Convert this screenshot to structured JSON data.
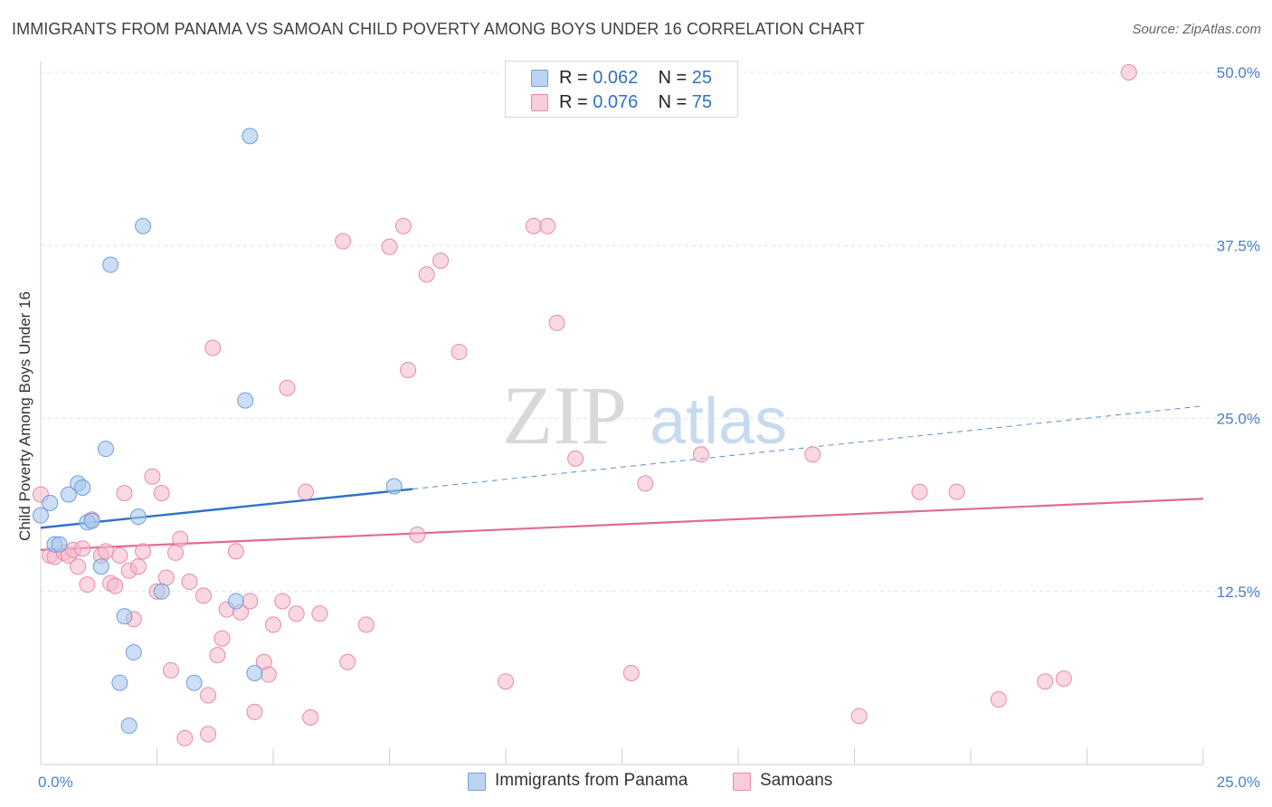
{
  "header": {
    "title": "IMMIGRANTS FROM PANAMA VS SAMOAN CHILD POVERTY AMONG BOYS UNDER 16 CORRELATION CHART",
    "source": "Source: ZipAtlas.com"
  },
  "watermark": {
    "zip": "ZIP",
    "atlas": "atlas"
  },
  "legend": {
    "rows": [
      {
        "r_label": "R =",
        "r_value": "0.062",
        "n_label": "N =",
        "n_value": "25",
        "color": "#a9c8ee"
      },
      {
        "r_label": "R =",
        "r_value": "0.076",
        "n_label": "N =",
        "n_value": "75",
        "color": "#f5b8cb"
      }
    ]
  },
  "bottom_legend": {
    "series1": "Immigrants from Panama",
    "series2": "Samoans"
  },
  "chart_data": {
    "type": "scatter",
    "title": "IMMIGRANTS FROM PANAMA VS SAMOAN CHILD POVERTY AMONG BOYS UNDER 16 CORRELATION CHART",
    "xlabel": "",
    "ylabel": "Child Poverty Among Boys Under 16",
    "xlim": [
      0,
      25
    ],
    "ylim": [
      0,
      50
    ],
    "x_tick_labels": [
      "0.0%",
      "25.0%"
    ],
    "y_ticks": [
      12.5,
      25,
      37.5,
      50
    ],
    "y_tick_labels": [
      "12.5%",
      "25.0%",
      "37.5%",
      "50.0%"
    ],
    "colors": {
      "panama_fill": "#a9c8ee",
      "panama_edge": "#6f9fd9",
      "panama_line": "#2f72c8",
      "samoan_fill": "#f5b8cb",
      "samoan_edge": "#e68aa8",
      "samoan_line": "#e06b94",
      "grid": "#e4e4e4",
      "tick_label": "#4a7fc8"
    },
    "series": [
      {
        "name": "Immigrants from Panama",
        "trend": {
          "x0": 0,
          "y0": 17.1,
          "x1": 8.0,
          "y1": 19.9,
          "x_dash_end": 25,
          "y_dash_end": 25.9
        },
        "points": [
          [
            0.0,
            18.0
          ],
          [
            0.2,
            18.9
          ],
          [
            0.3,
            15.9
          ],
          [
            0.4,
            15.9
          ],
          [
            0.6,
            19.5
          ],
          [
            0.8,
            20.3
          ],
          [
            0.9,
            20.0
          ],
          [
            1.0,
            17.5
          ],
          [
            1.1,
            17.6
          ],
          [
            1.3,
            14.3
          ],
          [
            1.4,
            22.8
          ],
          [
            1.5,
            36.1
          ],
          [
            1.7,
            5.9
          ],
          [
            1.8,
            10.7
          ],
          [
            1.9,
            2.8
          ],
          [
            2.0,
            8.1
          ],
          [
            2.1,
            17.9
          ],
          [
            2.2,
            38.9
          ],
          [
            2.6,
            12.5
          ],
          [
            3.3,
            5.9
          ],
          [
            4.2,
            11.8
          ],
          [
            4.4,
            26.3
          ],
          [
            4.5,
            45.4
          ],
          [
            4.6,
            6.6
          ],
          [
            7.6,
            20.1
          ]
        ]
      },
      {
        "name": "Samoans",
        "trend": {
          "x0": 0,
          "y0": 15.5,
          "x1": 25,
          "y1": 19.2
        },
        "points": [
          [
            0.0,
            19.5
          ],
          [
            0.2,
            15.1
          ],
          [
            0.3,
            15.0
          ],
          [
            0.5,
            15.3
          ],
          [
            0.6,
            15.1
          ],
          [
            0.7,
            15.5
          ],
          [
            0.8,
            14.3
          ],
          [
            0.9,
            15.6
          ],
          [
            1.0,
            13.0
          ],
          [
            1.1,
            17.7
          ],
          [
            1.3,
            15.1
          ],
          [
            1.4,
            15.4
          ],
          [
            1.5,
            13.1
          ],
          [
            1.6,
            12.9
          ],
          [
            1.7,
            15.1
          ],
          [
            1.8,
            19.6
          ],
          [
            1.9,
            14.0
          ],
          [
            2.0,
            10.5
          ],
          [
            2.1,
            14.3
          ],
          [
            2.2,
            15.4
          ],
          [
            2.4,
            20.8
          ],
          [
            2.5,
            12.5
          ],
          [
            2.6,
            19.6
          ],
          [
            2.7,
            13.5
          ],
          [
            2.8,
            6.8
          ],
          [
            2.9,
            15.3
          ],
          [
            3.0,
            16.3
          ],
          [
            3.1,
            1.9
          ],
          [
            3.2,
            13.2
          ],
          [
            3.5,
            12.2
          ],
          [
            3.6,
            2.2
          ],
          [
            3.6,
            5.0
          ],
          [
            3.7,
            30.1
          ],
          [
            3.8,
            7.9
          ],
          [
            3.9,
            9.1
          ],
          [
            4.0,
            11.2
          ],
          [
            4.2,
            15.4
          ],
          [
            4.3,
            11.0
          ],
          [
            4.5,
            11.8
          ],
          [
            4.6,
            3.8
          ],
          [
            4.8,
            7.4
          ],
          [
            4.9,
            6.5
          ],
          [
            5.0,
            10.1
          ],
          [
            5.2,
            11.8
          ],
          [
            5.3,
            27.2
          ],
          [
            5.5,
            10.9
          ],
          [
            5.7,
            19.7
          ],
          [
            5.8,
            3.4
          ],
          [
            6.0,
            10.9
          ],
          [
            6.5,
            37.8
          ],
          [
            6.6,
            7.4
          ],
          [
            7.0,
            10.1
          ],
          [
            7.5,
            37.4
          ],
          [
            7.8,
            38.9
          ],
          [
            7.9,
            28.5
          ],
          [
            8.1,
            16.6
          ],
          [
            8.3,
            35.4
          ],
          [
            8.6,
            36.4
          ],
          [
            9.0,
            29.8
          ],
          [
            10.0,
            6.0
          ],
          [
            10.6,
            38.9
          ],
          [
            10.9,
            38.9
          ],
          [
            11.1,
            31.9
          ],
          [
            11.5,
            22.1
          ],
          [
            12.7,
            6.6
          ],
          [
            13.0,
            20.3
          ],
          [
            17.6,
            3.5
          ],
          [
            18.9,
            19.7
          ],
          [
            19.7,
            19.7
          ],
          [
            20.6,
            4.7
          ],
          [
            21.6,
            6.0
          ],
          [
            22.0,
            6.2
          ],
          [
            14.2,
            22.4
          ],
          [
            16.6,
            22.4
          ],
          [
            23.4,
            50.0
          ]
        ]
      }
    ]
  }
}
